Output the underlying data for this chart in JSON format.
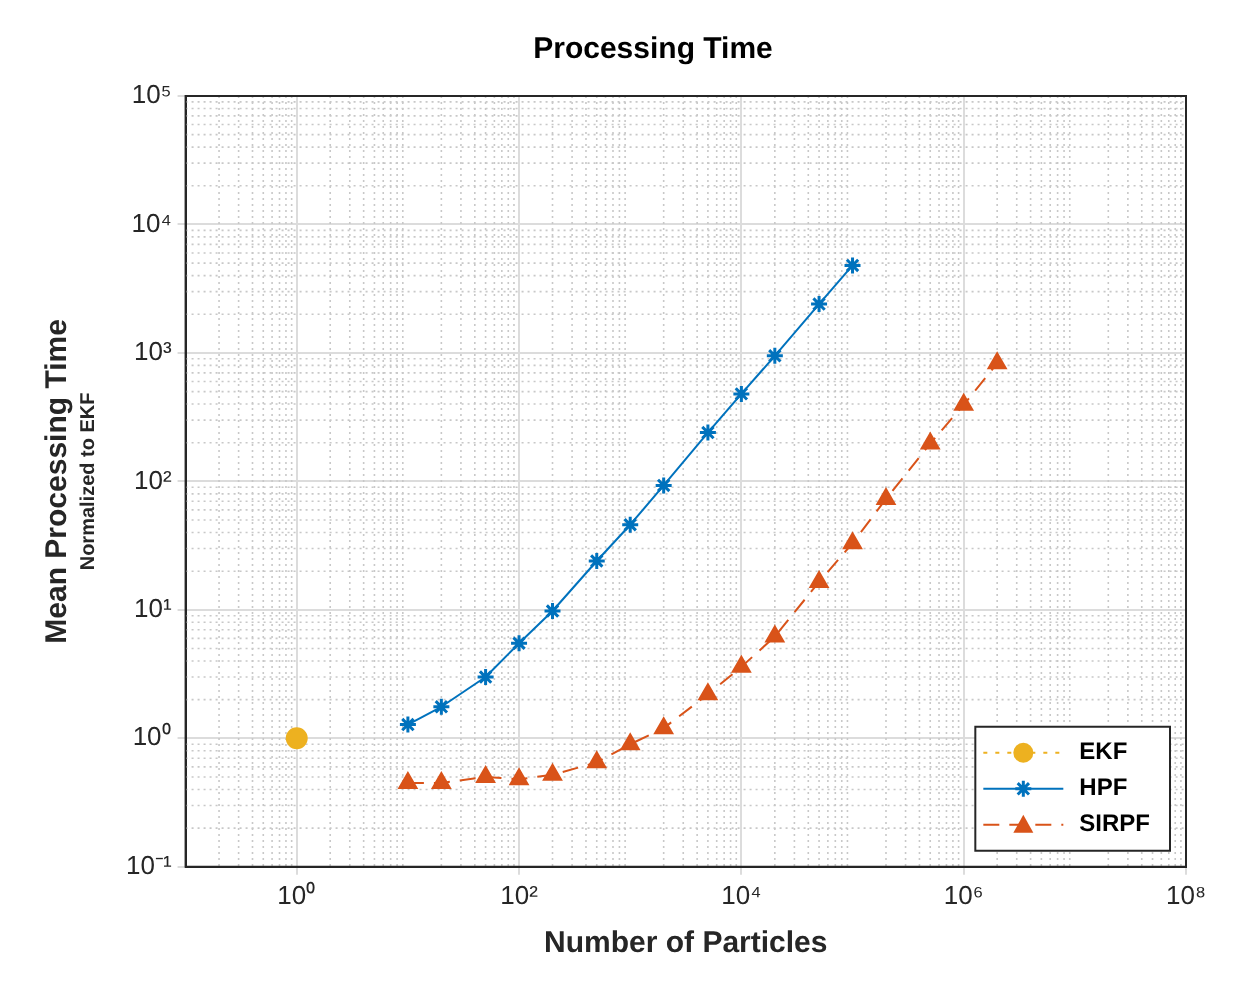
{
  "chart_data": {
    "type": "line",
    "title": "Processing Time",
    "xlabel": "Number of Particles",
    "ylabel": "Mean Processing Time",
    "subtitle": "Normalized to EKF",
    "log": "xy",
    "grid": true,
    "legend": "bottom right",
    "xlim": [
      0.1,
      100000000
    ],
    "xticks": [
      {
        "value": 1,
        "label": "10⁰"
      },
      {
        "value": 100,
        "label": "10²"
      },
      {
        "value": 10000,
        "label": "10⁴"
      },
      {
        "value": 1000000,
        "label": "10⁶"
      },
      {
        "value": 100000000,
        "label": "10⁸"
      }
    ],
    "ylim": [
      0.1,
      100000
    ],
    "yticks": [
      {
        "value": 0.1,
        "label": "10⁻¹"
      },
      {
        "value": 1,
        "label": "10⁰"
      },
      {
        "value": 10,
        "label": "10¹"
      },
      {
        "value": 100,
        "label": "10²"
      },
      {
        "value": 1000,
        "label": "10³"
      },
      {
        "value": 10000,
        "label": "10⁴"
      },
      {
        "value": 100000,
        "label": "10⁵"
      }
    ],
    "series": [
      {
        "name": "EKF",
        "color": "#edb120",
        "marker": "circle",
        "line_style": "dotted",
        "x": [
          1
        ],
        "values": [
          1
        ]
      },
      {
        "name": "HPF",
        "color": "#0072bd",
        "marker": "cross",
        "line_style": "solid",
        "x": [
          10,
          20,
          50,
          100,
          200,
          500,
          1000,
          2000,
          5000,
          10000,
          20000,
          50000,
          100000
        ],
        "values": [
          1.28,
          1.76,
          3,
          5.5,
          9.8,
          24,
          46,
          93,
          240,
          480,
          950,
          2400,
          4800
        ]
      },
      {
        "name": "SIRPF",
        "color": "#d95319",
        "marker": "triangle",
        "line_style": "dashed",
        "x": [
          10,
          20,
          50,
          100,
          200,
          500,
          1000,
          2000,
          5000,
          10000,
          20000,
          50000,
          100000,
          200000,
          500000,
          1000000,
          2000000
        ],
        "values": [
          0.45,
          0.45,
          0.5,
          0.48,
          0.52,
          0.65,
          0.9,
          1.2,
          2.2,
          3.6,
          6.2,
          16.5,
          33,
          73,
          197,
          395,
          830
        ]
      }
    ]
  }
}
